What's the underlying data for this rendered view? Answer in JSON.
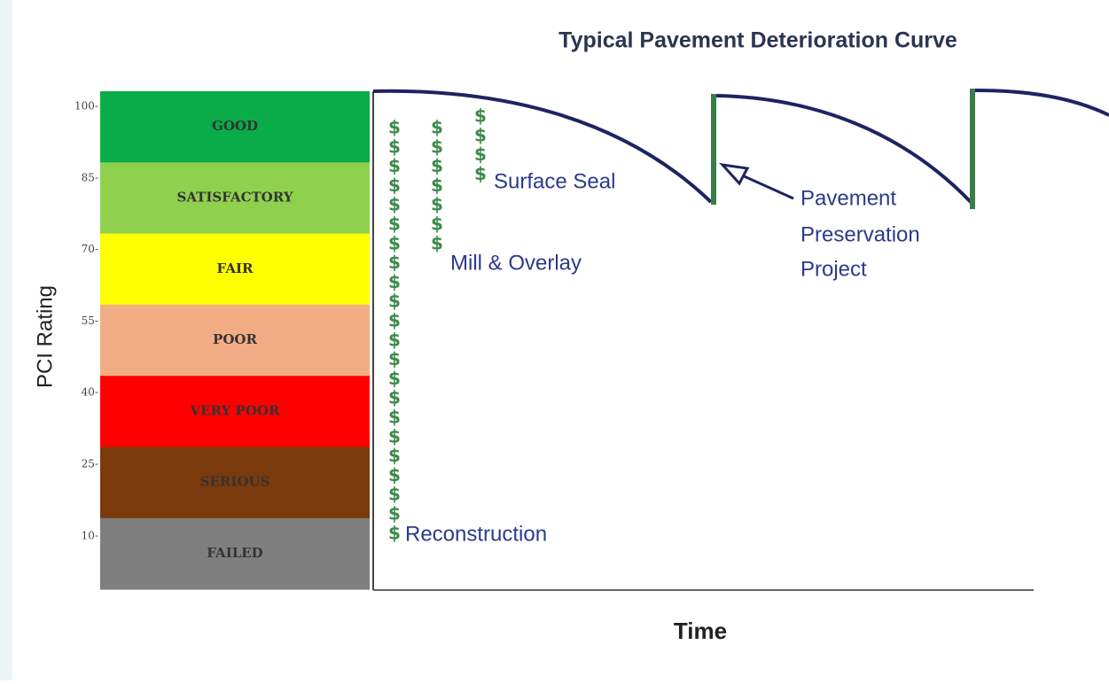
{
  "title": "Typical Pavement Deterioration Curve",
  "y_label": "PCI Rating",
  "x_label": "Time",
  "yticks": [
    "100-",
    "85-",
    "70-",
    "55-",
    "40-",
    "25-",
    "10-"
  ],
  "bands": [
    {
      "label": "GOOD",
      "color": "#0aac4a"
    },
    {
      "label": "SATISFACTORY",
      "color": "#8fd14f"
    },
    {
      "label": "FAIR",
      "color": "#ffff00"
    },
    {
      "label": "POOR",
      "color": "#f3ad85"
    },
    {
      "label": "VERY POOR",
      "color": "#ff0000"
    },
    {
      "label": "SERIOUS",
      "color": "#7b3a0c"
    },
    {
      "label": "FAILED",
      "color": "#7f7f7f"
    }
  ],
  "dollar": "$",
  "treatments": [
    "Surface Seal",
    "Mill & Overlay",
    "Reconstruction"
  ],
  "callout": [
    "Pavement",
    "Preservation",
    "Project"
  ]
}
